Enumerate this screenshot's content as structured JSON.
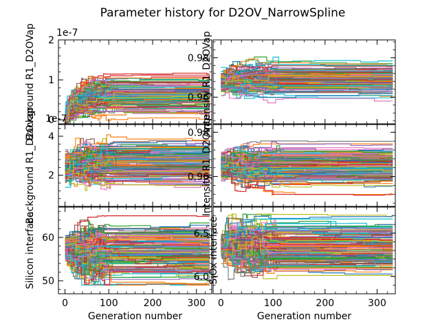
{
  "figure": {
    "title": "Parameter history for D2OV_NarrowSpline",
    "palette": [
      "#1f77b4",
      "#ff7f0e",
      "#2ca02c",
      "#d62728",
      "#9467bd",
      "#8c564b",
      "#e377c2",
      "#7f7f7f",
      "#bcbd22",
      "#17becf"
    ]
  },
  "chart_data": [
    {
      "type": "line",
      "ylabel": "Background R1_D2OVap",
      "xlabel": "",
      "xlim": [
        -15,
        335
      ],
      "ylim": [
        -1e-08,
        2e-07
      ],
      "offset_text": "1e-7",
      "x_ticks": [
        0,
        100,
        200,
        300
      ],
      "x_ticklabels": [
        "",
        "",
        "",
        ""
      ],
      "y_ticks": [
        0,
        1e-07,
        2e-07
      ],
      "y_ticklabels": [
        "0",
        "1",
        "2"
      ],
      "generations": 330,
      "n_series": 140,
      "band": {
        "start_center": 1e-08,
        "start_spread": 2e-08,
        "converged_center": 6e-08,
        "converged_spread": 5.5e-08,
        "max_observed": 1.92e-07
      }
    },
    {
      "type": "line",
      "ylabel": "Intensity R1_D2OVap",
      "xlabel": "",
      "xlim": [
        -15,
        335
      ],
      "ylim": [
        0.9465,
        0.989
      ],
      "x_ticks": [
        0,
        100,
        200,
        300
      ],
      "x_ticklabels": [
        "",
        "",
        "",
        ""
      ],
      "y_ticks": [
        0.96,
        0.98
      ],
      "y_ticklabels": [
        "0.96",
        "0.98"
      ],
      "generations": 330,
      "n_series": 140,
      "band": {
        "start_center": 0.968,
        "start_spread": 0.006,
        "converged_center": 0.969,
        "converged_spread": 0.011,
        "max_observed": 0.988,
        "min_observed": 0.948
      }
    },
    {
      "type": "line",
      "ylabel": "Background R1_D2Ovap",
      "xlabel": "",
      "xlim": [
        -15,
        335
      ],
      "ylim": [
        4e-08,
        4.6e-07
      ],
      "offset_text": "1e-7",
      "x_ticks": [
        0,
        100,
        200,
        300
      ],
      "x_ticklabels": [
        "",
        "",
        "",
        ""
      ],
      "y_ticks": [
        2e-07,
        4e-07
      ],
      "y_ticklabels": [
        "2",
        "4"
      ],
      "generations": 330,
      "n_series": 140,
      "band": {
        "start_center": 2.3e-07,
        "start_spread": 9e-08,
        "converged_center": 2.6e-07,
        "converged_spread": 1.6e-07,
        "max_observed": 4.5e-07,
        "min_observed": 9e-08
      }
    },
    {
      "type": "line",
      "ylabel": "Intensity R1_D2Ovap",
      "xlabel": "",
      "xlim": [
        -15,
        335
      ],
      "ylim": [
        0.9465,
        0.9835
      ],
      "x_ticks": [
        0,
        100,
        200,
        300
      ],
      "x_ticklabels": [
        "",
        "",
        "",
        ""
      ],
      "y_ticks": [
        0.96,
        0.98
      ],
      "y_ticklabels": [
        "0.96",
        "0.98"
      ],
      "generations": 330,
      "n_series": 140,
      "band": {
        "start_center": 0.965,
        "start_spread": 0.006,
        "converged_center": 0.965,
        "converged_spread": 0.012,
        "max_observed": 0.98,
        "min_observed": 0.948
      }
    },
    {
      "type": "line",
      "ylabel": "Silicon interface",
      "xlabel": "Generation number",
      "xlim": [
        -15,
        335
      ],
      "ylim": [
        47,
        67
      ],
      "x_ticks": [
        0,
        100,
        200,
        300
      ],
      "x_ticklabels": [
        "0",
        "100",
        "200",
        "300"
      ],
      "y_ticks": [
        50,
        60
      ],
      "y_ticklabels": [
        "50",
        "60"
      ],
      "generations": 330,
      "n_series": 140,
      "band": {
        "start_center": 57.5,
        "start_spread": 2.5,
        "converged_center": 56,
        "converged_spread": 9,
        "max_observed": 65,
        "min_observed": 49
      }
    },
    {
      "type": "line",
      "ylabel": "SiOx interface",
      "xlabel": "Generation number",
      "xlim": [
        -15,
        335
      ],
      "ylim": [
        5.8,
        6.8
      ],
      "x_ticks": [
        0,
        100,
        200,
        300
      ],
      "x_ticklabels": [
        "0",
        "100",
        "200",
        "300"
      ],
      "y_ticks": [
        6.0,
        6.5
      ],
      "y_ticklabels": [
        "6.0",
        "6.5"
      ],
      "generations": 330,
      "n_series": 140,
      "band": {
        "start_center": 6.35,
        "start_spread": 0.15,
        "converged_center": 6.35,
        "converged_spread": 0.48,
        "max_observed": 6.72,
        "min_observed": 5.85
      }
    }
  ]
}
